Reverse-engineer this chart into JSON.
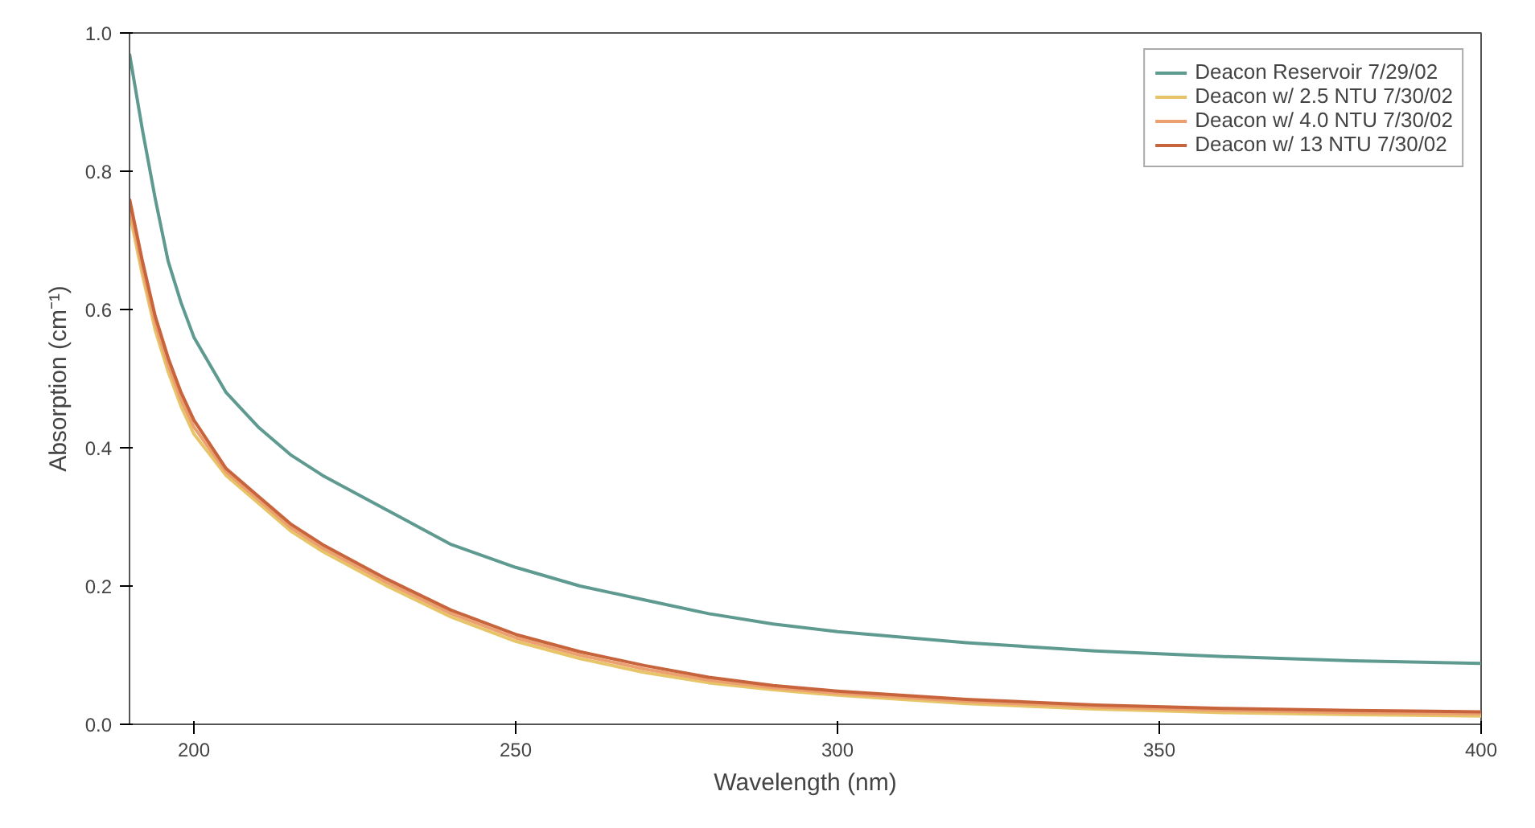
{
  "chart_data": {
    "type": "line",
    "xlabel": "Wavelength (nm)",
    "ylabel": "Absorption (cm⁻¹)",
    "x": [
      190,
      192,
      194,
      196,
      198,
      200,
      205,
      210,
      215,
      220,
      230,
      240,
      250,
      260,
      270,
      280,
      290,
      300,
      320,
      340,
      360,
      380,
      400
    ],
    "series": [
      {
        "name": "Deacon Reservoir 7/29/02",
        "color": "#5f9a90",
        "values": [
          0.97,
          0.86,
          0.76,
          0.67,
          0.61,
          0.56,
          0.48,
          0.43,
          0.39,
          0.36,
          0.31,
          0.26,
          0.227,
          0.2,
          0.18,
          0.16,
          0.145,
          0.134,
          0.118,
          0.106,
          0.098,
          0.092,
          0.088
        ]
      },
      {
        "name": "Deacon w/ 2.5 NTU 7/30/02",
        "color": "#e8c468",
        "values": [
          0.74,
          0.65,
          0.57,
          0.51,
          0.46,
          0.42,
          0.36,
          0.32,
          0.28,
          0.25,
          0.2,
          0.155,
          0.12,
          0.095,
          0.075,
          0.06,
          0.05,
          0.042,
          0.03,
          0.022,
          0.017,
          0.014,
          0.012
        ]
      },
      {
        "name": "Deacon w/ 4.0 NTU 7/30/02",
        "color": "#eca070",
        "values": [
          0.75,
          0.66,
          0.58,
          0.52,
          0.47,
          0.43,
          0.365,
          0.325,
          0.285,
          0.255,
          0.205,
          0.16,
          0.125,
          0.1,
          0.08,
          0.064,
          0.053,
          0.045,
          0.033,
          0.025,
          0.02,
          0.017,
          0.015
        ]
      },
      {
        "name": "Deacon w/ 13 NTU 7/30/02",
        "color": "#c8643c",
        "values": [
          0.76,
          0.67,
          0.59,
          0.53,
          0.48,
          0.44,
          0.37,
          0.33,
          0.29,
          0.26,
          0.21,
          0.165,
          0.13,
          0.105,
          0.085,
          0.068,
          0.056,
          0.048,
          0.036,
          0.028,
          0.023,
          0.02,
          0.018
        ]
      }
    ],
    "xlim": [
      190,
      400
    ],
    "xticks": [
      200,
      250,
      300,
      350,
      400
    ],
    "ylim": [
      0,
      1.0
    ],
    "yticks": [
      {
        "value": 0,
        "label": "0.0"
      },
      {
        "value": 0.2,
        "label": "0.2"
      },
      {
        "value": 0.4,
        "label": "0.4"
      },
      {
        "value": 0.6,
        "label": "0.6"
      },
      {
        "value": 0.8,
        "label": "0.8"
      },
      {
        "value": 1.0,
        "label": "1.0"
      }
    ],
    "grid": false,
    "legend": "top right",
    "line_style": "solid",
    "marker": "none"
  }
}
